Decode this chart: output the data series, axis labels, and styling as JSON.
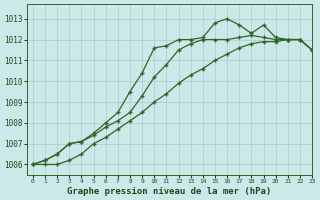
{
  "title": "Graphe pression niveau de la mer (hPa)",
  "bg_color": "#cde8e8",
  "grid_color": "#aacccc",
  "line_color": "#2d6628",
  "xlim": [
    -0.5,
    23
  ],
  "ylim": [
    1005.5,
    1013.7
  ],
  "yticks": [
    1006,
    1007,
    1008,
    1009,
    1010,
    1011,
    1012,
    1013
  ],
  "xticks": [
    0,
    1,
    2,
    3,
    4,
    5,
    6,
    7,
    8,
    9,
    10,
    11,
    12,
    13,
    14,
    15,
    16,
    17,
    18,
    19,
    20,
    21,
    22,
    23
  ],
  "series1_x": [
    0,
    1,
    2,
    3,
    4,
    5,
    6,
    7,
    8,
    9,
    10,
    11,
    12,
    13,
    14,
    15,
    16,
    17,
    18,
    19,
    20,
    21,
    22,
    23
  ],
  "series1_y": [
    1006.0,
    1006.2,
    1006.5,
    1007.0,
    1007.1,
    1007.4,
    1007.8,
    1008.1,
    1008.5,
    1009.3,
    1010.2,
    1010.8,
    1011.5,
    1011.8,
    1012.0,
    1012.0,
    1012.0,
    1012.1,
    1012.2,
    1012.1,
    1012.0,
    1012.0,
    1012.0,
    1011.5
  ],
  "series2_x": [
    0,
    1,
    2,
    3,
    4,
    5,
    6,
    7,
    8,
    9,
    10,
    11,
    12,
    13,
    14,
    15,
    16,
    17,
    18,
    19,
    20,
    21,
    22,
    23
  ],
  "series2_y": [
    1006.0,
    1006.2,
    1006.5,
    1007.0,
    1007.1,
    1007.5,
    1008.0,
    1008.5,
    1009.5,
    1010.4,
    1011.6,
    1011.7,
    1012.0,
    1012.0,
    1012.1,
    1012.8,
    1013.0,
    1012.7,
    1012.3,
    1012.7,
    1012.1,
    1012.0,
    1012.0,
    1011.5
  ],
  "series3_x": [
    0,
    1,
    2,
    3,
    4,
    5,
    6,
    7,
    8,
    9,
    10,
    11,
    12,
    13,
    14,
    15,
    16,
    17,
    18,
    19,
    20,
    21,
    22,
    23
  ],
  "series3_y": [
    1006.0,
    1006.0,
    1006.0,
    1006.2,
    1006.5,
    1007.0,
    1007.3,
    1007.7,
    1008.1,
    1008.5,
    1009.0,
    1009.4,
    1009.9,
    1010.3,
    1010.6,
    1011.0,
    1011.3,
    1011.6,
    1011.8,
    1011.9,
    1011.9,
    1012.0,
    1012.0,
    1011.5
  ]
}
